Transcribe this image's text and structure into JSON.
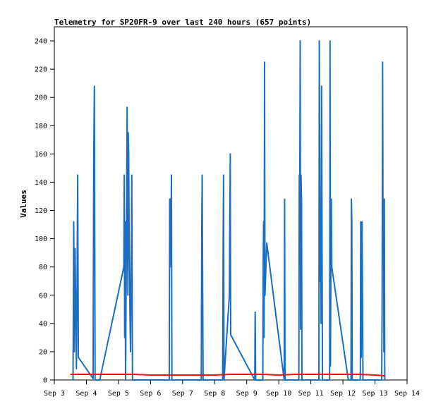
{
  "chart_data": {
    "type": "line",
    "title": "Telemetry for SP20FR-9 over last 240 hours (657 points)",
    "xlabel": "",
    "ylabel": "Values",
    "xlim": [
      "2025-09-03",
      "2025-09-14"
    ],
    "ylim": [
      0,
      250
    ],
    "x_ticks": [
      "Sep 3",
      "Sep 4",
      "Sep 5",
      "Sep 6",
      "Sep 7",
      "Sep 8",
      "Sep 9",
      "Sep 10",
      "Sep 11",
      "Sep 12",
      "Sep 13",
      "Sep 14"
    ],
    "y_ticks": [
      0,
      20,
      40,
      60,
      80,
      100,
      120,
      140,
      160,
      180,
      200,
      220,
      240
    ],
    "grid": false,
    "colors": {
      "series_blue": "#1a6fc4",
      "series_red": "#ee1111",
      "axis": "#000000"
    },
    "series": [
      {
        "color": "#1a6fc4",
        "points": [
          [
            "2025-09-03 14:00",
            0
          ],
          [
            "2025-09-03 14:30",
            112
          ],
          [
            "2025-09-03 15:00",
            20
          ],
          [
            "2025-09-03 15:30",
            93
          ],
          [
            "2025-09-03 16:00",
            55
          ],
          [
            "2025-09-03 16:30",
            8
          ],
          [
            "2025-09-03 17:00",
            64
          ],
          [
            "2025-09-03 17:30",
            145
          ],
          [
            "2025-09-03 18:00",
            16
          ],
          [
            "2025-09-04 05:00",
            1
          ],
          [
            "2025-09-04 05:30",
            160
          ],
          [
            "2025-09-04 06:00",
            208
          ],
          [
            "2025-09-04 06:30",
            0
          ],
          [
            "2025-09-04 10:00",
            0
          ],
          [
            "2025-09-05 04:00",
            80
          ],
          [
            "2025-09-05 04:20",
            145
          ],
          [
            "2025-09-05 04:40",
            30
          ],
          [
            "2025-09-05 05:00",
            112
          ],
          [
            "2025-09-05 05:20",
            0
          ],
          [
            "2025-09-05 06:00",
            110
          ],
          [
            "2025-09-05 06:30",
            193
          ],
          [
            "2025-09-05 07:00",
            60
          ],
          [
            "2025-09-05 07:20",
            175
          ],
          [
            "2025-09-05 07:40",
            160
          ],
          [
            "2025-09-05 08:00",
            100
          ],
          [
            "2025-09-05 08:30",
            55
          ],
          [
            "2025-09-05 09:00",
            20
          ],
          [
            "2025-09-05 09:30",
            80
          ],
          [
            "2025-09-05 10:00",
            145
          ],
          [
            "2025-09-05 10:30",
            0
          ],
          [
            "2025-09-06 14:00",
            0
          ],
          [
            "2025-09-06 14:20",
            128
          ],
          [
            "2025-09-06 14:40",
            100
          ],
          [
            "2025-09-06 15:00",
            128
          ],
          [
            "2025-09-06 15:20",
            80
          ],
          [
            "2025-09-06 15:40",
            145
          ],
          [
            "2025-09-06 16:00",
            0
          ],
          [
            "2025-09-07 14:00",
            0
          ],
          [
            "2025-09-07 14:20",
            112
          ],
          [
            "2025-09-07 14:40",
            145
          ],
          [
            "2025-09-07 15:00",
            72
          ],
          [
            "2025-09-07 15:20",
            0
          ],
          [
            "2025-09-08 06:00",
            0
          ],
          [
            "2025-09-08 06:20",
            96
          ],
          [
            "2025-09-08 06:40",
            145
          ],
          [
            "2025-09-08 07:00",
            0
          ],
          [
            "2025-09-08 11:00",
            60
          ],
          [
            "2025-09-08 11:20",
            112
          ],
          [
            "2025-09-08 11:40",
            160
          ],
          [
            "2025-09-08 12:00",
            32
          ],
          [
            "2025-09-09 06:00",
            0
          ],
          [
            "2025-09-09 06:20",
            48
          ],
          [
            "2025-09-09 06:40",
            0
          ],
          [
            "2025-09-09 12:00",
            0
          ],
          [
            "2025-09-09 12:20",
            85
          ],
          [
            "2025-09-09 12:40",
            112
          ],
          [
            "2025-09-09 13:00",
            30
          ],
          [
            "2025-09-09 13:20",
            225
          ],
          [
            "2025-09-09 13:40",
            60
          ],
          [
            "2025-09-09 15:00",
            97
          ],
          [
            "2025-09-10 04:00",
            0
          ],
          [
            "2025-09-10 04:20",
            128
          ],
          [
            "2025-09-10 04:40",
            0
          ],
          [
            "2025-09-10 15:00",
            0
          ],
          [
            "2025-09-10 15:20",
            145
          ],
          [
            "2025-09-10 15:40",
            130
          ],
          [
            "2025-09-10 16:00",
            240
          ],
          [
            "2025-09-10 16:20",
            36
          ],
          [
            "2025-09-10 16:40",
            145
          ],
          [
            "2025-09-10 17:00",
            128
          ],
          [
            "2025-09-10 17:20",
            0
          ],
          [
            "2025-09-11 06:00",
            0
          ],
          [
            "2025-09-11 06:20",
            240
          ],
          [
            "2025-09-11 06:40",
            147
          ],
          [
            "2025-09-11 07:00",
            70
          ],
          [
            "2025-09-11 07:20",
            120
          ],
          [
            "2025-09-11 07:40",
            40
          ],
          [
            "2025-09-11 08:00",
            208
          ],
          [
            "2025-09-11 08:20",
            112
          ],
          [
            "2025-09-11 08:40",
            0
          ],
          [
            "2025-09-11 14:00",
            0
          ],
          [
            "2025-09-11 14:20",
            240
          ],
          [
            "2025-09-11 14:40",
            10
          ],
          [
            "2025-09-11 15:00",
            80
          ],
          [
            "2025-09-11 15:20",
            128
          ],
          [
            "2025-09-11 15:40",
            80
          ],
          [
            "2025-09-12 04:00",
            0
          ],
          [
            "2025-09-12 06:00",
            0
          ],
          [
            "2025-09-12 06:20",
            128
          ],
          [
            "2025-09-12 06:40",
            112
          ],
          [
            "2025-09-12 07:00",
            0
          ],
          [
            "2025-09-12 13:00",
            0
          ],
          [
            "2025-09-12 13:20",
            112
          ],
          [
            "2025-09-12 13:40",
            16
          ],
          [
            "2025-09-12 14:00",
            48
          ],
          [
            "2025-09-12 14:20",
            112
          ],
          [
            "2025-09-12 14:40",
            56
          ],
          [
            "2025-09-12 15:00",
            0
          ],
          [
            "2025-09-13 05:00",
            0
          ],
          [
            "2025-09-13 05:20",
            48
          ],
          [
            "2025-09-13 05:40",
            225
          ],
          [
            "2025-09-13 06:00",
            112
          ],
          [
            "2025-09-13 06:20",
            128
          ],
          [
            "2025-09-13 06:40",
            20
          ],
          [
            "2025-09-13 07:00",
            128
          ],
          [
            "2025-09-13 07:20",
            0
          ]
        ]
      },
      {
        "color": "#ee1111",
        "points": [
          [
            "2025-09-03 12:00",
            4
          ],
          [
            "2025-09-04 00:00",
            4
          ],
          [
            "2025-09-04 12:00",
            4
          ],
          [
            "2025-09-05 00:00",
            4
          ],
          [
            "2025-09-05 12:00",
            4
          ],
          [
            "2025-09-06 00:00",
            3.5
          ],
          [
            "2025-09-06 12:00",
            3.5
          ],
          [
            "2025-09-07 00:00",
            3.5
          ],
          [
            "2025-09-07 12:00",
            3.5
          ],
          [
            "2025-09-08 00:00",
            3.5
          ],
          [
            "2025-09-08 12:00",
            4
          ],
          [
            "2025-09-09 00:00",
            4
          ],
          [
            "2025-09-09 12:00",
            4
          ],
          [
            "2025-09-10 00:00",
            3.5
          ],
          [
            "2025-09-10 12:00",
            4
          ],
          [
            "2025-09-11 00:00",
            4
          ],
          [
            "2025-09-11 12:00",
            4
          ],
          [
            "2025-09-12 00:00",
            4
          ],
          [
            "2025-09-12 12:00",
            4
          ],
          [
            "2025-09-13 00:00",
            3.5
          ],
          [
            "2025-09-13 07:00",
            3
          ]
        ]
      }
    ]
  }
}
